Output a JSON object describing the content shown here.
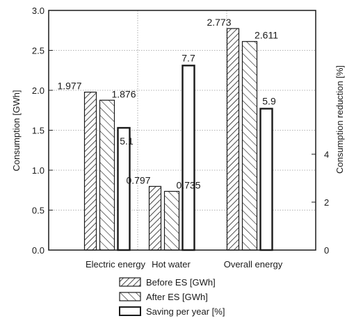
{
  "chart_data": {
    "type": "bar",
    "categories": [
      "Electric energy",
      "Hot water",
      "Overall energy"
    ],
    "series": [
      {
        "name": "Before ES [GWh]",
        "axis": "left",
        "pattern": "hatch-forward",
        "values": [
          1.977,
          0.797,
          2.773
        ],
        "labels": [
          "1.977",
          "0.797",
          "2.773"
        ]
      },
      {
        "name": "After ES [GWh]",
        "axis": "left",
        "pattern": "hatch-back",
        "values": [
          1.876,
          0.735,
          2.611
        ],
        "labels": [
          "1.876",
          "0.735",
          "2.611"
        ]
      },
      {
        "name": "Saving per year [%]",
        "axis": "right",
        "pattern": "open",
        "values": [
          5.1,
          7.7,
          5.9
        ],
        "labels": [
          "5.1",
          "7.7",
          "5.9"
        ]
      }
    ],
    "ylabel": "Consumption [GWh]",
    "ylim": [
      0,
      3.0
    ],
    "yticks": [
      "0.0",
      "0.5",
      "1.0",
      "1.5",
      "2.0",
      "2.5",
      "3.0"
    ],
    "y2label": "Consumption reduction [%]",
    "y2lim": [
      0,
      10
    ],
    "y2ticks": [
      "0",
      "2",
      "4"
    ],
    "grid": true,
    "legend": "bottom"
  }
}
